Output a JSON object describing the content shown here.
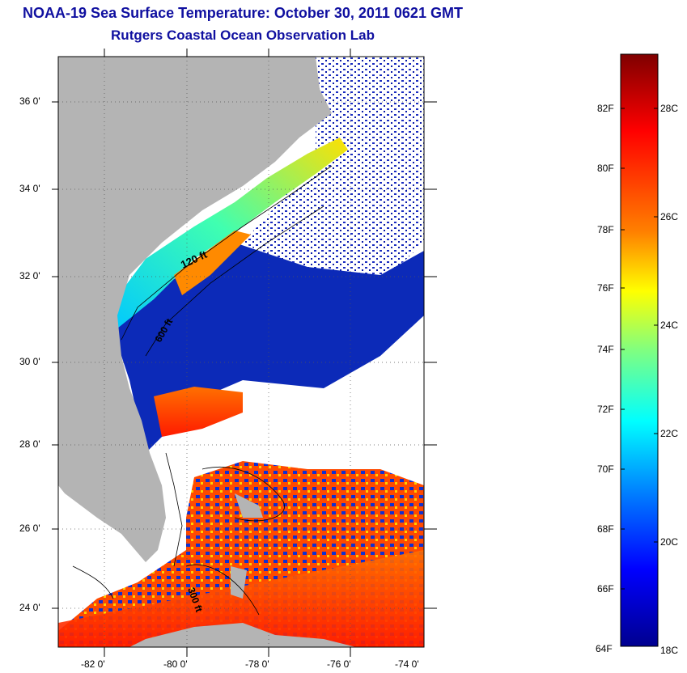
{
  "title": {
    "line1": "NOAA-19 Sea Surface Temperature:  October 30, 2011 0621 GMT",
    "line2": "Rutgers Coastal Ocean Observation Lab"
  },
  "map": {
    "lat_labels": [
      "36 0'",
      "34 0'",
      "32 0'",
      "30 0'",
      "28 0'",
      "26 0'",
      "24 0'"
    ],
    "lon_labels": [
      "-82 0'",
      "-80 0'",
      "-78 0'",
      "-76 0'",
      "-74 0'"
    ],
    "contour_labels": [
      "120 ft",
      "600 ft",
      "300 ft"
    ],
    "land_color": "#b4b4b4"
  },
  "colorbar": {
    "f_labels": [
      "82F",
      "80F",
      "78F",
      "76F",
      "74F",
      "72F",
      "70F",
      "68F",
      "66F",
      "64F"
    ],
    "c_labels": [
      "28C",
      "26C",
      "24C",
      "22C",
      "20C",
      "18C"
    ],
    "colors": [
      "#7f0000",
      "#ff0000",
      "#ff8000",
      "#ffff00",
      "#80ff80",
      "#00ffff",
      "#0080ff",
      "#0000ff",
      "#00008f"
    ]
  }
}
